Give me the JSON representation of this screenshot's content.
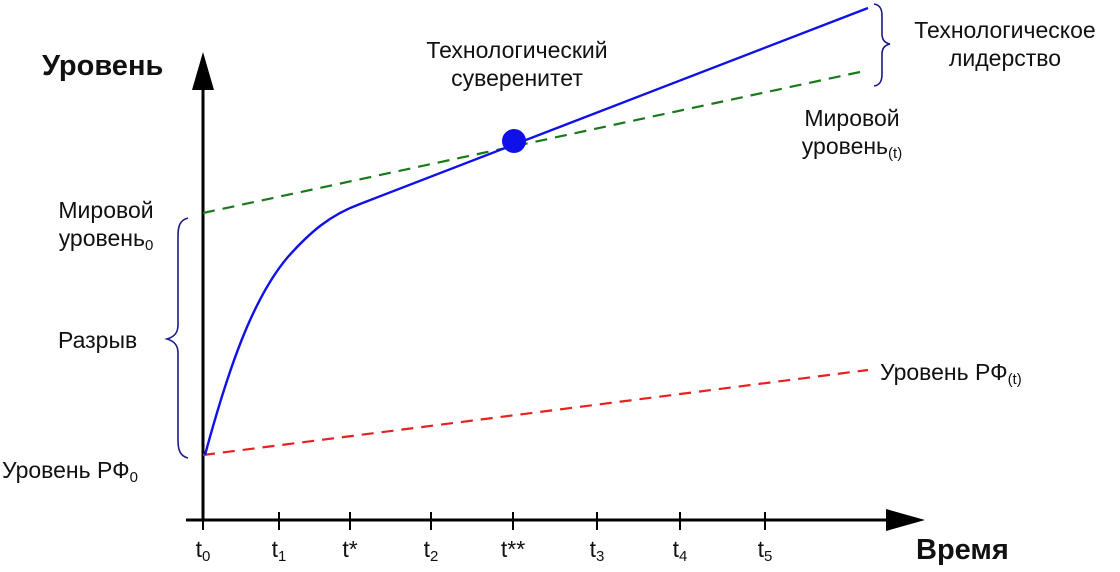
{
  "diagram": {
    "y_axis_title": "Уровень",
    "x_axis_title": "Время",
    "ticks": [
      {
        "base": "t",
        "sub": "0"
      },
      {
        "base": "t",
        "sub": "1"
      },
      {
        "base": "t*",
        "sub": ""
      },
      {
        "base": "t",
        "sub": "2"
      },
      {
        "base": "t**",
        "sub": ""
      },
      {
        "base": "t",
        "sub": "3"
      },
      {
        "base": "t",
        "sub": "4"
      },
      {
        "base": "t",
        "sub": "5"
      }
    ],
    "labels": {
      "sovereignty_line1": "Технологический",
      "sovereignty_line2": "суверенитет",
      "leadership_line1": "Технологическое",
      "leadership_line2": "лидерство",
      "world_level_t_line1": "Мировой",
      "world_level_t_line2": "уровень",
      "world_level_t_sub": "(t)",
      "world_level_0_line1": "Мировой",
      "world_level_0_line2": "уровень",
      "world_level_0_sub": "0",
      "gap": "Разрыв",
      "rf_level_t": "Уровень РФ",
      "rf_level_t_sub": "(t)",
      "rf_level_0": "Уровень РФ",
      "rf_level_0_sub": "0"
    },
    "colors": {
      "axis": "#000000",
      "tech_curve": "#1010e8",
      "world_line": "#1a7a1a",
      "rf_line": "#e82020",
      "brace": "#1a1a8a",
      "point": "#1010e8"
    }
  }
}
